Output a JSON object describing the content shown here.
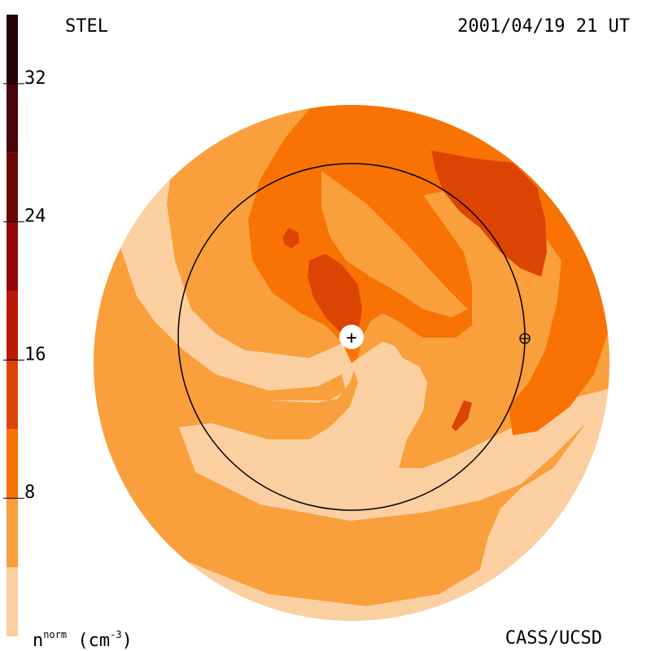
{
  "header": {
    "label_left": "STEL",
    "datetime": "2001/04/19 21 UT"
  },
  "footer": {
    "quantity_symbol": "n",
    "quantity_superscript": "norm",
    "unit_open": " (cm",
    "unit_exponent": "-3",
    "unit_close": ")",
    "credit": "CASS/UCSD"
  },
  "colorbar": {
    "tick_labels": [
      "8",
      "16",
      "24",
      "32"
    ],
    "tick_values": [
      8,
      16,
      24,
      32
    ],
    "range": [
      0,
      36
    ],
    "bands": [
      {
        "from": 0,
        "to": 4,
        "color": "#FBCFA0"
      },
      {
        "from": 4,
        "to": 8,
        "color": "#F99F3C"
      },
      {
        "from": 8,
        "to": 12,
        "color": "#F87204"
      },
      {
        "from": 12,
        "to": 16,
        "color": "#DC4404"
      },
      {
        "from": 16,
        "to": 20,
        "color": "#BB1A08"
      },
      {
        "from": 20,
        "to": 24,
        "color": "#94080A"
      },
      {
        "from": 24,
        "to": 28,
        "color": "#6E0608"
      },
      {
        "from": 28,
        "to": 32,
        "color": "#480406"
      },
      {
        "from": 32,
        "to": 36,
        "color": "#260202"
      }
    ]
  },
  "colors": {
    "level_0": "#FBCFA0",
    "level_1": "#F99F3C",
    "level_2": "#F87204",
    "level_3": "#DC4404",
    "orbit": "#000000",
    "sun_marker": "#ffffff"
  },
  "markers": {
    "sun": "+",
    "earth": "⊕"
  }
}
